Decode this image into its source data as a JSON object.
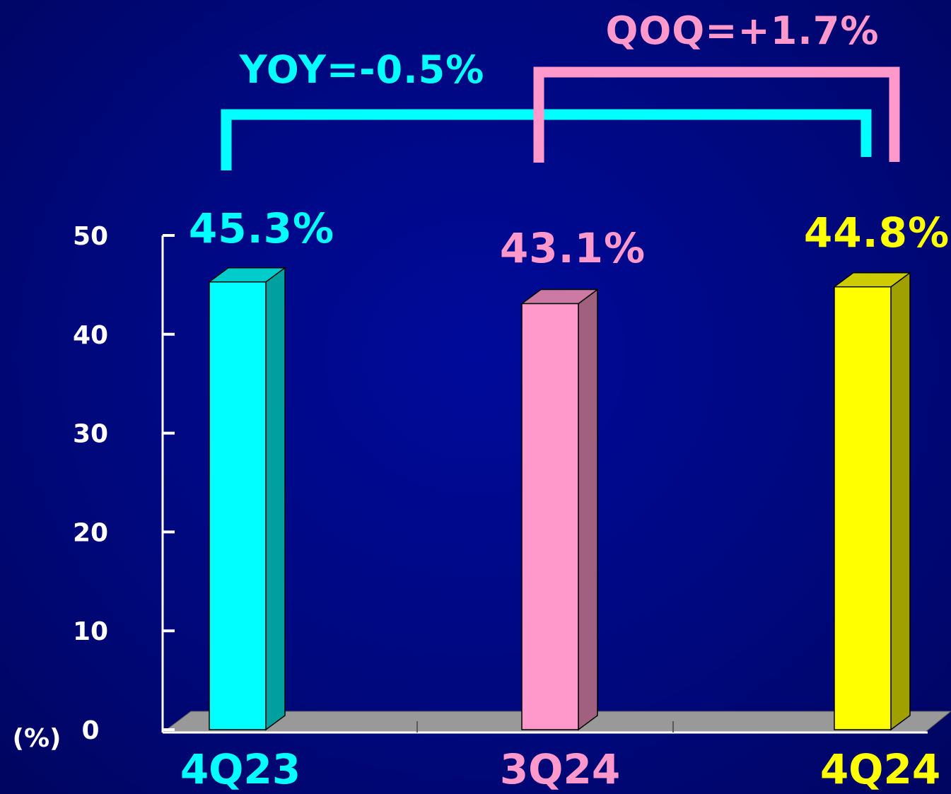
{
  "chart_data": {
    "type": "bar",
    "categories": [
      "4Q23",
      "3Q24",
      "4Q24"
    ],
    "values": [
      45.3,
      43.1,
      44.8
    ],
    "value_labels": [
      "45.3%",
      "43.1%",
      "44.8%"
    ],
    "ylabel": "(%)",
    "ylim": [
      0,
      50
    ],
    "yticks": [
      "0",
      "10",
      "20",
      "30",
      "40",
      "50"
    ],
    "grid": false,
    "style": "3d-bar",
    "bar_colors": [
      {
        "front": "#00ffff",
        "side": "#00a0a0",
        "top": "#00cccc"
      },
      {
        "front": "#ff99cc",
        "side": "#a06080",
        "top": "#cc7aa3"
      },
      {
        "front": "#ffff00",
        "side": "#a0a000",
        "top": "#cccc00"
      }
    ],
    "label_colors": [
      "#00ffff",
      "#ff99cc",
      "#ffff00"
    ],
    "annotations": [
      {
        "text": "YOY=-0.5%",
        "from": "4Q23",
        "to": "4Q24",
        "color": "#00ffff"
      },
      {
        "text": "QOQ=+1.7%",
        "from": "3Q24",
        "to": "4Q24",
        "color": "#ff99cc"
      }
    ],
    "floor_color": "#999999",
    "axis_color": "#ffffff"
  }
}
